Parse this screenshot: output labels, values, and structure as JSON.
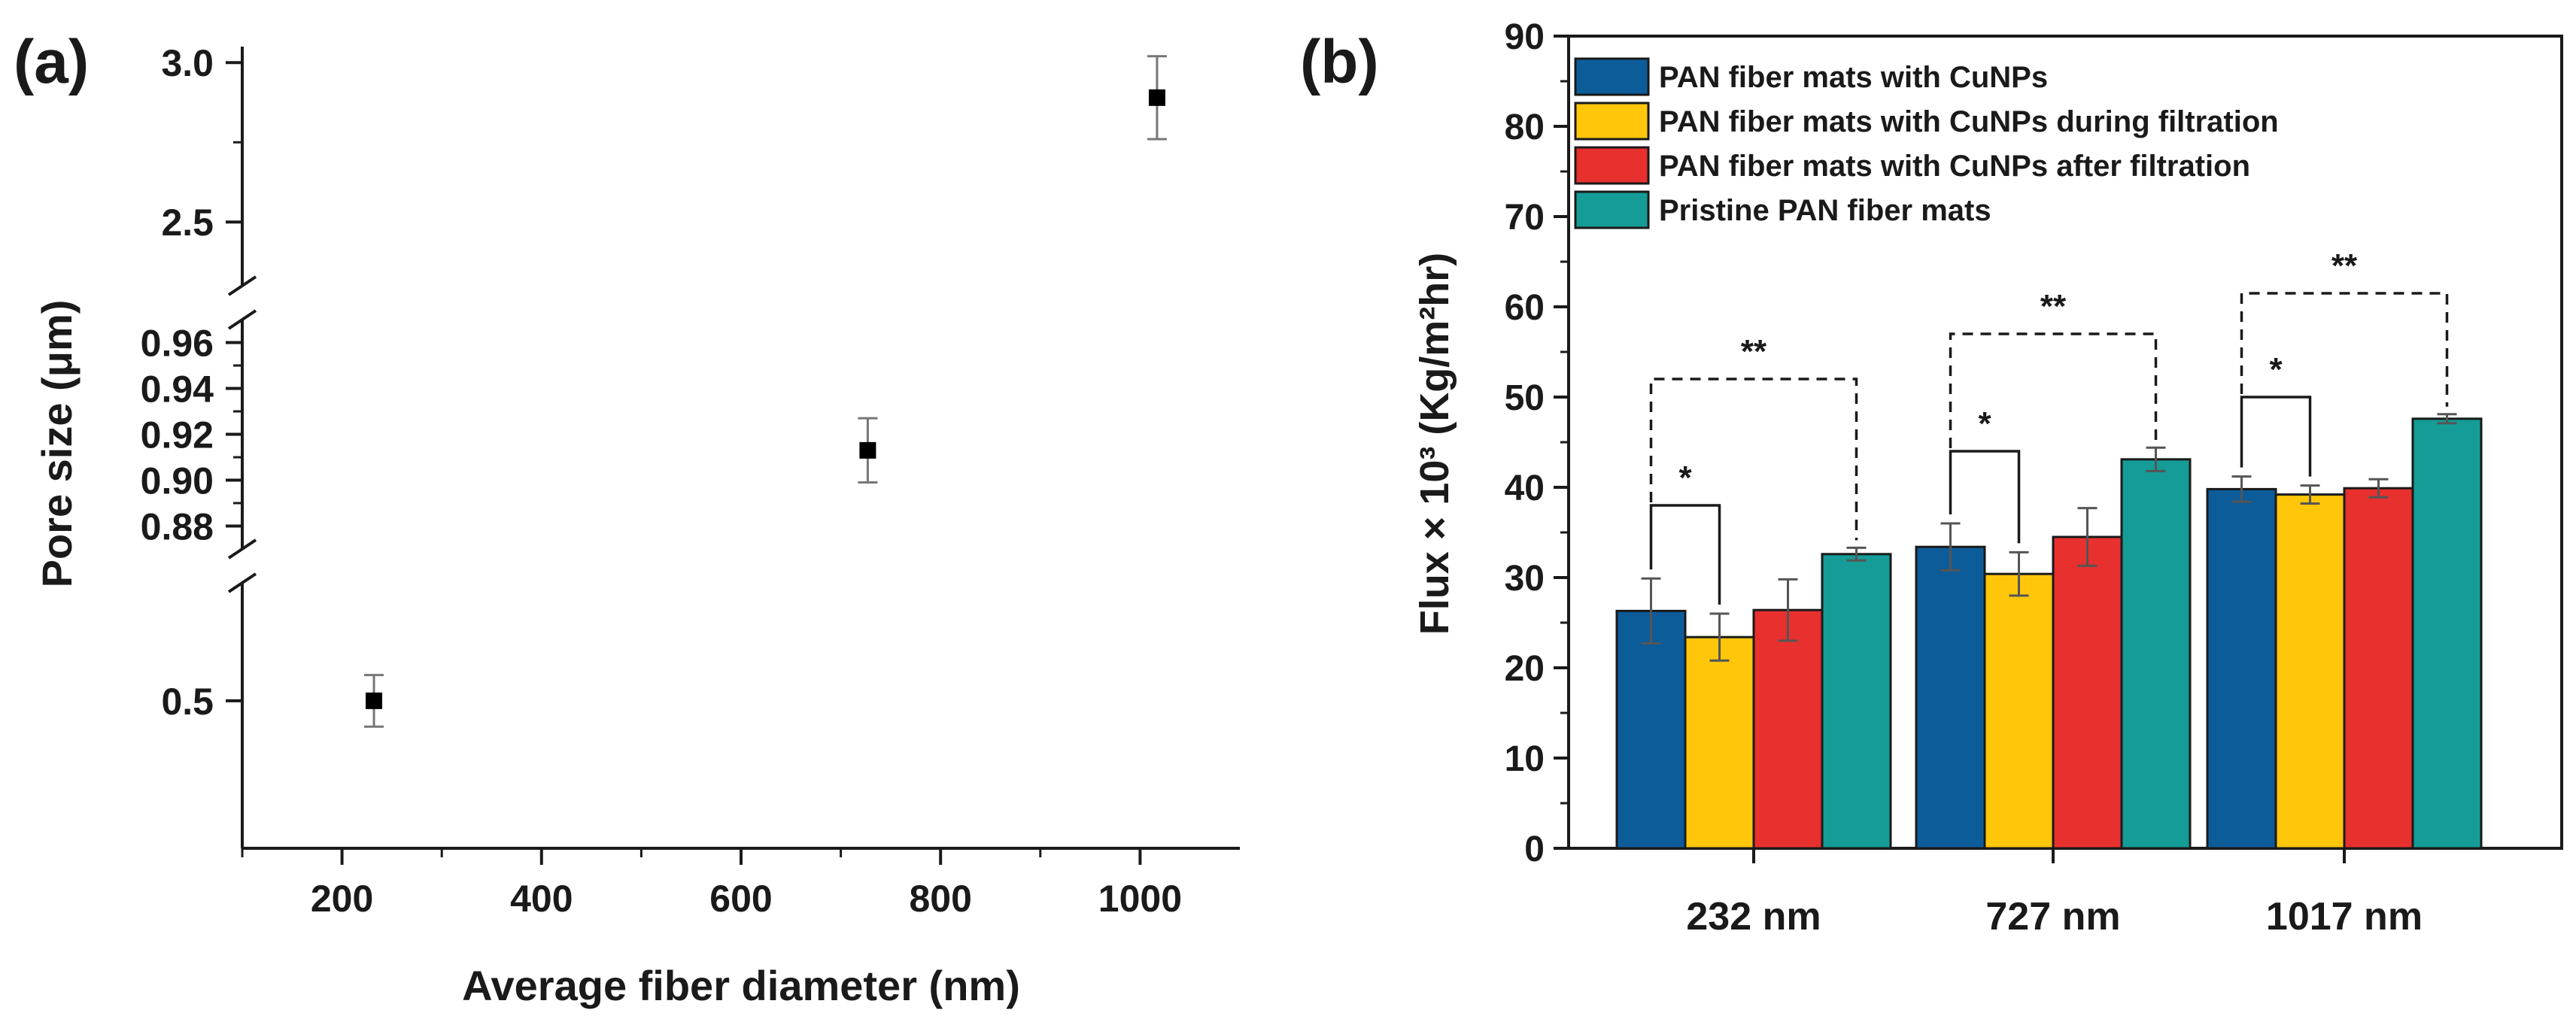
{
  "chart_data": [
    {
      "panel_label": "(a)",
      "type": "scatter",
      "xlabel": "Average fiber diameter (nm)",
      "ylabel": "Pore size (μm)",
      "xlim": [
        100,
        1100
      ],
      "x_ticks": [
        {
          "value": 200,
          "label": "200"
        },
        {
          "value": 400,
          "label": "400"
        },
        {
          "value": 600,
          "label": "600"
        },
        {
          "value": 800,
          "label": "800"
        },
        {
          "value": 1000,
          "label": "1000"
        }
      ],
      "y_axis_broken": true,
      "y_segments": [
        {
          "range": [
            0.3,
            0.66
          ],
          "ticks": [
            {
              "value": 0.5,
              "label": "0.5"
            }
          ]
        },
        {
          "range": [
            0.87,
            0.97
          ],
          "ticks": [
            {
              "value": 0.88,
              "label": "0.88"
            },
            {
              "value": 0.9,
              "label": "0.90"
            },
            {
              "value": 0.92,
              "label": "0.92"
            },
            {
              "value": 0.94,
              "label": "0.94"
            },
            {
              "value": 0.96,
              "label": "0.96"
            }
          ]
        },
        {
          "range": [
            2.3,
            3.05
          ],
          "ticks": [
            {
              "value": 2.5,
              "label": "2.5"
            },
            {
              "value": 3.0,
              "label": "3.0"
            }
          ]
        }
      ],
      "points": [
        {
          "x": 232,
          "y": 0.5,
          "err": 0.035
        },
        {
          "x": 727,
          "y": 0.913,
          "err": 0.014
        },
        {
          "x": 1017,
          "y": 2.89,
          "err": 0.13
        }
      ]
    },
    {
      "panel_label": "(b)",
      "type": "bar",
      "xlabel": "",
      "ylabel": "Flux × 10³ (Kg/m²hr)",
      "ylim": [
        0,
        90
      ],
      "y_ticks": [
        0,
        10,
        20,
        30,
        40,
        50,
        60,
        70,
        80,
        90
      ],
      "categories": [
        "232 nm",
        "727 nm",
        "1017 nm"
      ],
      "series": [
        {
          "name": "PAN fiber mats with CuNPs",
          "color": "#0d5c9a",
          "values": [
            26.3,
            33.4,
            39.8
          ],
          "errors": [
            3.6,
            2.6,
            1.4
          ]
        },
        {
          "name": "PAN fiber mats with CuNPs during filtration",
          "color": "#ffc60a",
          "values": [
            23.4,
            30.4,
            39.2
          ],
          "errors": [
            2.6,
            2.4,
            1.0
          ]
        },
        {
          "name": "PAN fiber mats with CuNPs after filtration",
          "color": "#e8302e",
          "values": [
            26.4,
            34.5,
            39.9
          ],
          "errors": [
            3.4,
            3.2,
            1.0
          ]
        },
        {
          "name": "Pristine PAN fiber mats",
          "color": "#159c96",
          "values": [
            32.6,
            43.1,
            47.6
          ],
          "errors": [
            0.7,
            1.3,
            0.5
          ]
        }
      ],
      "significance": [
        {
          "category": "232 nm",
          "short_label": "*",
          "short_height": 38,
          "long_label": "**",
          "long_height": 52
        },
        {
          "category": "727 nm",
          "short_label": "*",
          "short_height": 44,
          "long_label": "**",
          "long_height": 57
        },
        {
          "category": "1017 nm",
          "short_label": "*",
          "short_height": 50,
          "long_label": "**",
          "long_height": 61.5
        }
      ],
      "legend_position": "top-left"
    }
  ]
}
